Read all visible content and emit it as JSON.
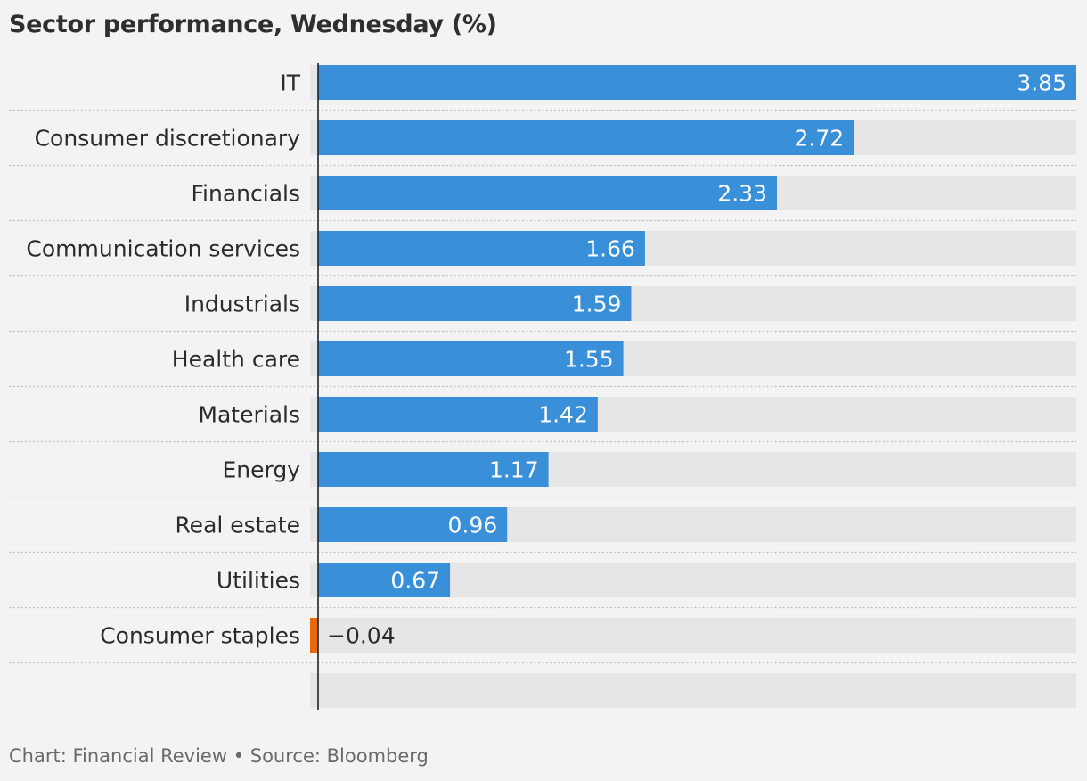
{
  "chart_data": {
    "type": "bar",
    "orientation": "horizontal",
    "title": "Sector performance, Wednesday (%)",
    "categories": [
      "IT",
      "Consumer discretionary",
      "Financials",
      "Communication services",
      "Industrials",
      "Health care",
      "Materials",
      "Energy",
      "Real estate",
      "Utilities",
      "Consumer staples"
    ],
    "values": [
      3.85,
      2.72,
      2.33,
      1.66,
      1.59,
      1.55,
      1.42,
      1.17,
      0.96,
      0.67,
      -0.04
    ],
    "value_labels": [
      "3.85",
      "2.72",
      "2.33",
      "1.66",
      "1.59",
      "1.55",
      "1.42",
      "1.17",
      "0.96",
      "0.67",
      "−0.04"
    ],
    "xlim": [
      0,
      3.85
    ],
    "grid": false,
    "legend": "none",
    "colors": {
      "positive": "#3a8fd9",
      "negative": "#e8680c",
      "track": "#e6e6e6",
      "background": "#f3f3f3",
      "axis": "#222222",
      "separator": "#bdbdbd"
    }
  },
  "footer": "Chart: Financial Review • Source: Bloomberg"
}
